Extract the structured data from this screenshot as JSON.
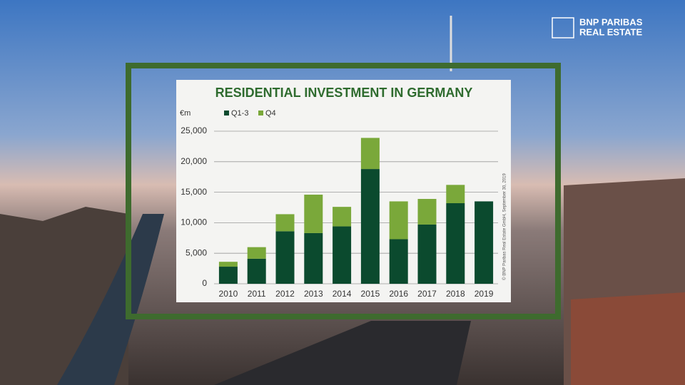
{
  "logo": {
    "lines": [
      "BNP PARIBAS",
      "REAL ESTATE"
    ]
  },
  "chart_data": {
    "type": "stacked_bar",
    "title": "RESIDENTIAL INVESTMENT IN GERMANY",
    "y_unit": "€m",
    "source": "© BNP Paribas Real Estate GmbH, September 30, 2019",
    "categories": [
      "2010",
      "2011",
      "2012",
      "2013",
      "2014",
      "2015",
      "2016",
      "2017",
      "2018",
      "2019"
    ],
    "series": [
      {
        "name": "Q1-3",
        "color": "#0b4a2e",
        "values": [
          2800,
          4100,
          8600,
          8300,
          9400,
          18800,
          7300,
          9700,
          13200,
          13500
        ]
      },
      {
        "name": "Q4",
        "color": "#7aa83a",
        "values": [
          800,
          1900,
          2800,
          6300,
          3200,
          5100,
          6200,
          4200,
          3000,
          null
        ]
      }
    ],
    "ylim": [
      0,
      25000
    ],
    "yticks": [
      0,
      {
        "value": 5000,
        "label": "5,000"
      },
      {
        "value": 10000,
        "label": "10,000"
      },
      {
        "value": 15000,
        "label": "15,000"
      },
      {
        "value": 20000,
        "label": "20,000"
      },
      {
        "value": 25000,
        "label": "25,000"
      }
    ],
    "grid": true
  }
}
